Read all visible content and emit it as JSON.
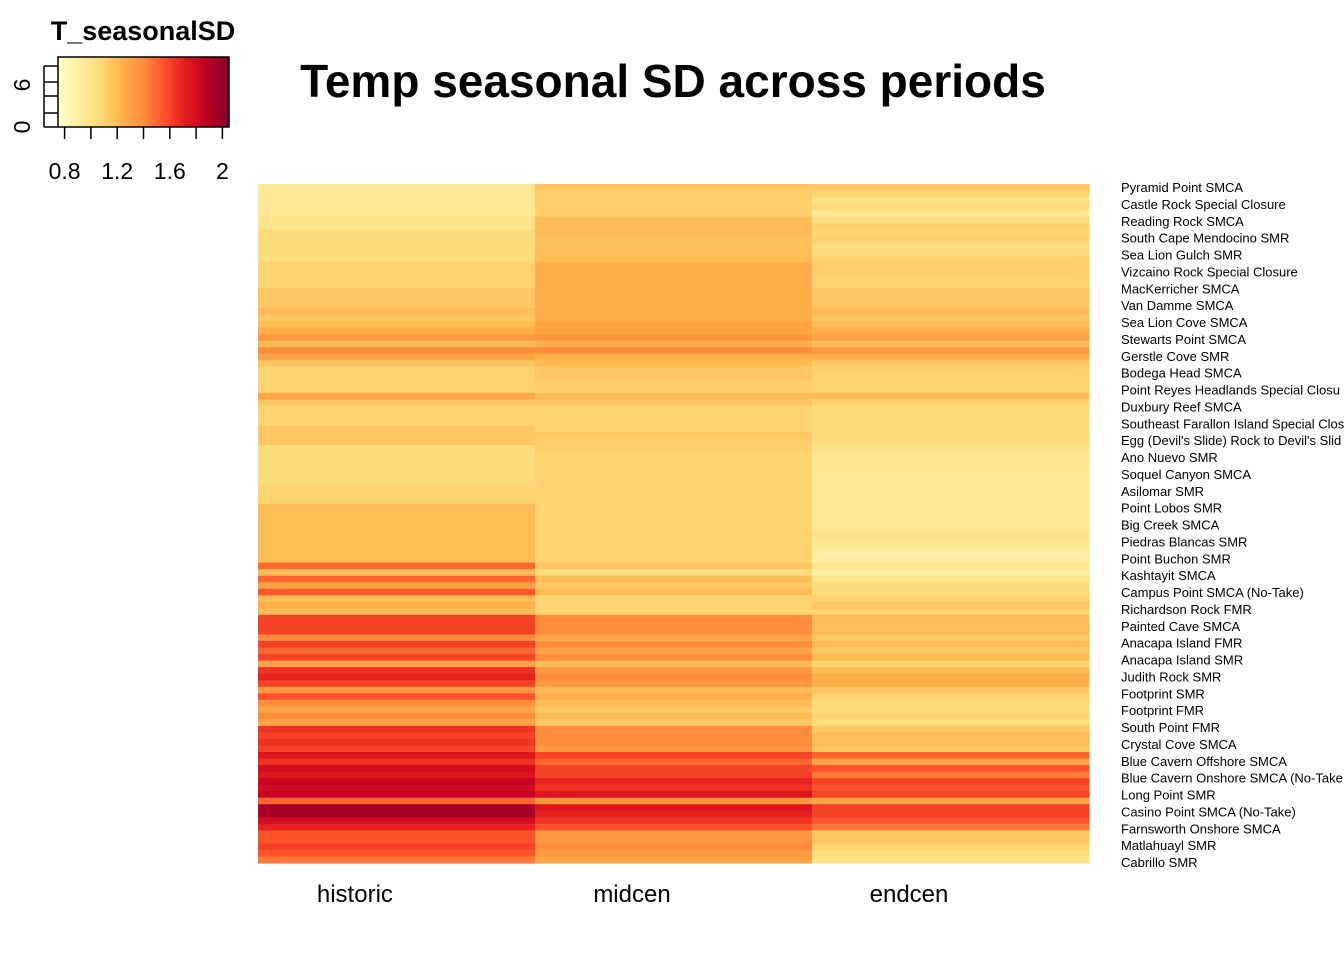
{
  "chart_data": {
    "type": "heatmap",
    "title": "Temp seasonal SD across periods",
    "columns": [
      "historic",
      "midcen",
      "endcen"
    ],
    "row_labels": [
      "Pyramid Point SMCA",
      "Castle Rock Special Closure",
      "Reading Rock SMCA",
      "South Cape Mendocino SMR",
      "Sea Lion Gulch SMR",
      "Vizcaino Rock Special Closure",
      "MacKerricher SMCA",
      "Van Damme SMCA",
      "Sea Lion Cove SMCA",
      "Stewarts Point SMCA",
      "Gerstle Cove SMR",
      "Bodega Head SMCA",
      "Point Reyes Headlands Special Closu",
      "Duxbury Reef SMCA",
      "Southeast Farallon Island Special Clos",
      "Egg (Devil's Slide) Rock to Devil's Slid",
      "Ano Nuevo SMR",
      "Soquel Canyon SMCA",
      "Asilomar SMR",
      "Point Lobos SMR",
      "Big Creek SMCA",
      "Piedras Blancas SMR",
      "Point Buchon SMR",
      "Kashtayit SMCA",
      "Campus Point SMCA (No-Take)",
      "Richardson Rock FMR",
      "Painted Cave SMCA",
      "Anacapa Island FMR",
      "Anacapa Island SMR",
      "Judith Rock SMR",
      "Footprint SMR",
      "Footprint FMR",
      "South Point FMR",
      "Crystal Cove SMCA",
      "Blue Cavern Offshore SMCA",
      "Blue Cavern Onshore SMCA (No-Take",
      "Long Point SMR",
      "Casino Point SMCA (No-Take)",
      "Farnsworth Onshore SMCA",
      "Matlahuayl SMR",
      "Cabrillo SMR"
    ],
    "values": [
      [
        0.95,
        1.15,
        1.15
      ],
      [
        0.95,
        1.12,
        1.1
      ],
      [
        0.95,
        1.12,
        1.0
      ],
      [
        0.95,
        1.12,
        1.05
      ],
      [
        0.95,
        1.12,
        0.95
      ],
      [
        1.0,
        1.2,
        1.05
      ],
      [
        1.0,
        1.2,
        1.1
      ],
      [
        1.05,
        1.2,
        1.08
      ],
      [
        1.05,
        1.18,
        1.1
      ],
      [
        1.05,
        1.18,
        1.05
      ],
      [
        1.05,
        1.2,
        1.05
      ],
      [
        1.05,
        1.2,
        1.1
      ],
      [
        1.1,
        1.25,
        1.12
      ],
      [
        1.1,
        1.25,
        1.12
      ],
      [
        1.1,
        1.25,
        1.1
      ],
      [
        1.1,
        1.25,
        1.1
      ],
      [
        1.15,
        1.25,
        1.15
      ],
      [
        1.15,
        1.25,
        1.15
      ],
      [
        1.15,
        1.25,
        1.15
      ],
      [
        1.2,
        1.25,
        1.2
      ],
      [
        1.15,
        1.25,
        1.15
      ],
      [
        1.2,
        1.3,
        1.2
      ],
      [
        1.25,
        1.3,
        1.25
      ],
      [
        1.35,
        1.35,
        1.3
      ],
      [
        1.2,
        1.25,
        1.2
      ],
      [
        1.4,
        1.4,
        1.35
      ],
      [
        1.3,
        1.25,
        1.25
      ],
      [
        1.15,
        1.2,
        1.15
      ],
      [
        1.1,
        1.15,
        1.12
      ],
      [
        1.1,
        1.15,
        1.1
      ],
      [
        1.1,
        1.12,
        1.1
      ],
      [
        1.1,
        1.12,
        1.1
      ],
      [
        1.3,
        1.2,
        1.2
      ],
      [
        1.15,
        1.15,
        1.1
      ],
      [
        1.1,
        1.1,
        1.05
      ],
      [
        1.1,
        1.1,
        1.05
      ],
      [
        1.1,
        1.1,
        1.05
      ],
      [
        1.15,
        1.1,
        1.05
      ],
      [
        1.15,
        1.15,
        1.05
      ],
      [
        1.15,
        1.12,
        1.05
      ],
      [
        1.05,
        1.12,
        1.0
      ],
      [
        1.05,
        1.1,
        0.98
      ],
      [
        1.05,
        1.1,
        0.98
      ],
      [
        1.05,
        1.1,
        0.96
      ],
      [
        1.05,
        1.1,
        0.95
      ],
      [
        1.05,
        1.1,
        0.95
      ],
      [
        1.1,
        1.1,
        0.95
      ],
      [
        1.1,
        1.1,
        0.95
      ],
      [
        1.1,
        1.1,
        0.95
      ],
      [
        1.2,
        1.1,
        0.95
      ],
      [
        1.2,
        1.1,
        0.95
      ],
      [
        1.2,
        1.1,
        0.95
      ],
      [
        1.2,
        1.1,
        0.95
      ],
      [
        1.2,
        1.1,
        1.0
      ],
      [
        1.2,
        1.1,
        0.98
      ],
      [
        1.2,
        1.1,
        0.95
      ],
      [
        1.2,
        1.1,
        0.9
      ],
      [
        1.2,
        1.1,
        0.92
      ],
      [
        1.5,
        1.15,
        0.98
      ],
      [
        1.2,
        1.05,
        0.9
      ],
      [
        1.5,
        1.2,
        1.0
      ],
      [
        1.3,
        1.15,
        1.05
      ],
      [
        1.55,
        1.2,
        1.05
      ],
      [
        1.2,
        1.1,
        1.1
      ],
      [
        1.25,
        1.1,
        1.15
      ],
      [
        1.2,
        1.1,
        1.1
      ],
      [
        1.6,
        1.4,
        1.2
      ],
      [
        1.6,
        1.4,
        1.2
      ],
      [
        1.6,
        1.4,
        1.2
      ],
      [
        1.4,
        1.3,
        1.15
      ],
      [
        1.6,
        1.4,
        1.2
      ],
      [
        1.5,
        1.3,
        1.15
      ],
      [
        1.6,
        1.4,
        1.2
      ],
      [
        1.3,
        1.2,
        1.1
      ],
      [
        1.65,
        1.35,
        1.2
      ],
      [
        1.7,
        1.4,
        1.25
      ],
      [
        1.6,
        1.35,
        1.25
      ],
      [
        1.35,
        1.2,
        1.15
      ],
      [
        1.55,
        1.25,
        1.1
      ],
      [
        1.4,
        1.2,
        1.05
      ],
      [
        1.3,
        1.15,
        1.05
      ],
      [
        1.4,
        1.2,
        1.1
      ],
      [
        1.3,
        1.15,
        1.05
      ],
      [
        1.65,
        1.4,
        1.15
      ],
      [
        1.6,
        1.4,
        1.2
      ],
      [
        1.65,
        1.4,
        1.2
      ],
      [
        1.6,
        1.35,
        1.15
      ],
      [
        1.75,
        1.6,
        1.5
      ],
      [
        1.65,
        1.5,
        1.3
      ],
      [
        1.8,
        1.6,
        1.55
      ],
      [
        1.75,
        1.6,
        1.45
      ],
      [
        1.85,
        1.7,
        1.6
      ],
      [
        1.8,
        1.65,
        1.55
      ],
      [
        1.85,
        1.75,
        1.6
      ],
      [
        1.5,
        1.35,
        1.3
      ],
      [
        1.95,
        1.75,
        1.6
      ],
      [
        1.95,
        1.7,
        1.6
      ],
      [
        1.8,
        1.65,
        1.55
      ],
      [
        1.7,
        1.55,
        1.45
      ],
      [
        1.55,
        1.35,
        1.15
      ],
      [
        1.55,
        1.35,
        1.15
      ],
      [
        1.6,
        1.4,
        1.1
      ],
      [
        1.55,
        1.35,
        1.05
      ],
      [
        1.45,
        1.3,
        1.0
      ]
    ],
    "color_key": {
      "title": "T_seasonalSD",
      "range": [
        0.75,
        2.05
      ],
      "tick_labels": [
        "0.8",
        "1.2",
        "1.6",
        "2"
      ],
      "tick_values": [
        0.8,
        1.2,
        1.6,
        2.0
      ],
      "histogram_axis_labels": [
        "0",
        "6"
      ],
      "colors": [
        "#FFFFCC",
        "#FFEDA0",
        "#FED976",
        "#FEB24C",
        "#FD8D3C",
        "#FC4E2A",
        "#E31A1C",
        "#BD0026",
        "#800026"
      ]
    }
  }
}
